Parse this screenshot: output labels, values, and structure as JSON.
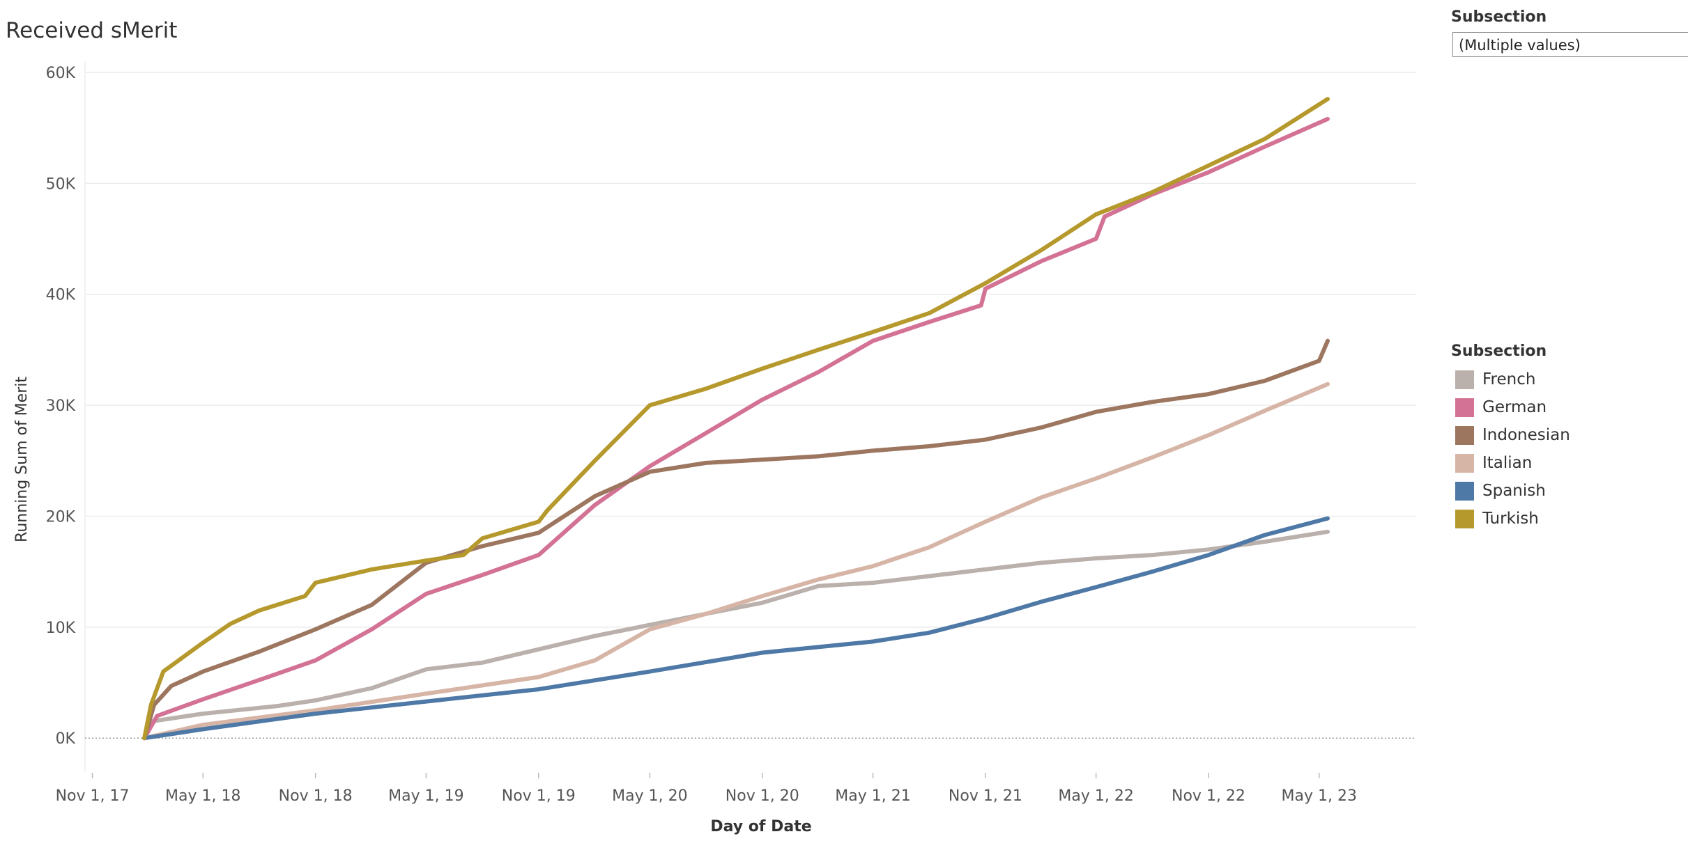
{
  "header": {
    "title": "Received sMerit"
  },
  "filter": {
    "title": "Subsection",
    "value": "(Multiple values)"
  },
  "legend": {
    "title": "Subsection",
    "items": [
      {
        "label": "French",
        "color": "#BAB0AC"
      },
      {
        "label": "German",
        "color": "#D37295"
      },
      {
        "label": "Indonesian",
        "color": "#9D7660"
      },
      {
        "label": "Italian",
        "color": "#D7B5A6"
      },
      {
        "label": "Spanish",
        "color": "#4E79A7"
      },
      {
        "label": "Turkish",
        "color": "#B6992D"
      }
    ]
  },
  "chart_data": {
    "type": "line",
    "xlabel": "Day of Date",
    "ylabel": "Running Sum of Merit",
    "x_ticks": [
      "Nov 1, 17",
      "May 1, 18",
      "Nov 1, 18",
      "May 1, 19",
      "Nov 1, 19",
      "May 1, 20",
      "Nov 1, 20",
      "May 1, 21",
      "Nov 1, 21",
      "May 1, 22",
      "Nov 1, 22",
      "May 1, 23"
    ],
    "y_ticks": [
      "0K",
      "10K",
      "20K",
      "30K",
      "40K",
      "50K",
      "60K"
    ],
    "ylim": [
      -3000,
      61000
    ],
    "xlim": [
      "2017-10-20",
      "2023-11-10"
    ],
    "grid": "horizontal",
    "legend_position": "right",
    "series": [
      {
        "name": "French",
        "color": "#BAB0AC",
        "points": [
          [
            "2018-01-25",
            0
          ],
          [
            "2018-02-05",
            1500
          ],
          [
            "2018-05-01",
            2200
          ],
          [
            "2018-09-01",
            2900
          ],
          [
            "2018-11-01",
            3400
          ],
          [
            "2019-02-01",
            4500
          ],
          [
            "2019-05-01",
            6200
          ],
          [
            "2019-08-01",
            6800
          ],
          [
            "2019-11-01",
            8000
          ],
          [
            "2020-02-01",
            9200
          ],
          [
            "2020-05-01",
            10200
          ],
          [
            "2020-08-01",
            11200
          ],
          [
            "2020-11-01",
            12200
          ],
          [
            "2021-02-01",
            13700
          ],
          [
            "2021-05-01",
            14000
          ],
          [
            "2021-08-01",
            14600
          ],
          [
            "2021-11-01",
            15200
          ],
          [
            "2022-02-01",
            15800
          ],
          [
            "2022-05-01",
            16200
          ],
          [
            "2022-08-01",
            16500
          ],
          [
            "2022-11-01",
            17000
          ],
          [
            "2023-02-01",
            17700
          ],
          [
            "2023-05-15",
            18600
          ]
        ]
      },
      {
        "name": "German",
        "color": "#D37295",
        "points": [
          [
            "2018-01-25",
            0
          ],
          [
            "2018-02-15",
            2000
          ],
          [
            "2018-05-01",
            3500
          ],
          [
            "2018-08-15",
            5500
          ],
          [
            "2018-11-01",
            7000
          ],
          [
            "2019-02-01",
            9800
          ],
          [
            "2019-05-01",
            13000
          ],
          [
            "2019-08-01",
            14700
          ],
          [
            "2019-11-01",
            16500
          ],
          [
            "2020-02-01",
            21000
          ],
          [
            "2020-05-01",
            24500
          ],
          [
            "2020-08-01",
            27500
          ],
          [
            "2020-11-01",
            30500
          ],
          [
            "2021-02-01",
            33000
          ],
          [
            "2021-05-01",
            35800
          ],
          [
            "2021-08-01",
            37500
          ],
          [
            "2021-10-25",
            39000
          ],
          [
            "2021-11-01",
            40500
          ],
          [
            "2022-02-01",
            43000
          ],
          [
            "2022-05-01",
            45000
          ],
          [
            "2022-05-15",
            47000
          ],
          [
            "2022-08-01",
            49000
          ],
          [
            "2022-11-01",
            51000
          ],
          [
            "2023-02-01",
            53300
          ],
          [
            "2023-05-15",
            55800
          ]
        ]
      },
      {
        "name": "Indonesian",
        "color": "#9D7660",
        "points": [
          [
            "2018-01-25",
            0
          ],
          [
            "2018-02-10",
            3000
          ],
          [
            "2018-03-10",
            4700
          ],
          [
            "2018-05-01",
            6000
          ],
          [
            "2018-08-01",
            7800
          ],
          [
            "2018-11-01",
            9800
          ],
          [
            "2019-02-01",
            12000
          ],
          [
            "2019-05-01",
            15800
          ],
          [
            "2019-08-01",
            17300
          ],
          [
            "2019-11-01",
            18500
          ],
          [
            "2020-02-01",
            21800
          ],
          [
            "2020-05-01",
            24000
          ],
          [
            "2020-08-01",
            24800
          ],
          [
            "2020-11-01",
            25100
          ],
          [
            "2021-02-01",
            25400
          ],
          [
            "2021-05-01",
            25900
          ],
          [
            "2021-08-01",
            26300
          ],
          [
            "2021-11-01",
            26900
          ],
          [
            "2022-02-01",
            28000
          ],
          [
            "2022-05-01",
            29400
          ],
          [
            "2022-08-01",
            30300
          ],
          [
            "2022-11-01",
            31000
          ],
          [
            "2023-02-01",
            32200
          ],
          [
            "2023-05-01",
            34000
          ],
          [
            "2023-05-15",
            35800
          ]
        ]
      },
      {
        "name": "Italian",
        "color": "#D7B5A6",
        "points": [
          [
            "2018-01-25",
            0
          ],
          [
            "2018-05-01",
            1200
          ],
          [
            "2018-11-01",
            2500
          ],
          [
            "2019-05-01",
            4000
          ],
          [
            "2019-11-01",
            5500
          ],
          [
            "2020-02-01",
            7000
          ],
          [
            "2020-05-01",
            9800
          ],
          [
            "2020-08-01",
            11200
          ],
          [
            "2020-11-01",
            12800
          ],
          [
            "2021-02-01",
            14300
          ],
          [
            "2021-05-01",
            15500
          ],
          [
            "2021-08-01",
            17200
          ],
          [
            "2021-11-01",
            19500
          ],
          [
            "2022-02-01",
            21700
          ],
          [
            "2022-05-01",
            23400
          ],
          [
            "2022-08-01",
            25300
          ],
          [
            "2022-11-01",
            27300
          ],
          [
            "2023-02-01",
            29500
          ],
          [
            "2023-05-15",
            31900
          ]
        ]
      },
      {
        "name": "Spanish",
        "color": "#4E79A7",
        "points": [
          [
            "2018-01-25",
            0
          ],
          [
            "2018-05-01",
            800
          ],
          [
            "2018-11-01",
            2200
          ],
          [
            "2019-05-01",
            3300
          ],
          [
            "2019-11-01",
            4400
          ],
          [
            "2020-05-01",
            6000
          ],
          [
            "2020-11-01",
            7700
          ],
          [
            "2021-05-01",
            8700
          ],
          [
            "2021-08-01",
            9500
          ],
          [
            "2021-11-01",
            10800
          ],
          [
            "2022-02-01",
            12300
          ],
          [
            "2022-05-01",
            13600
          ],
          [
            "2022-08-01",
            15000
          ],
          [
            "2022-11-01",
            16500
          ],
          [
            "2023-02-01",
            18300
          ],
          [
            "2023-05-15",
            19800
          ]
        ]
      },
      {
        "name": "Turkish",
        "color": "#B6992D",
        "points": [
          [
            "2018-01-25",
            0
          ],
          [
            "2018-02-05",
            3000
          ],
          [
            "2018-02-25",
            6000
          ],
          [
            "2018-05-01",
            8600
          ],
          [
            "2018-06-15",
            10300
          ],
          [
            "2018-08-01",
            11500
          ],
          [
            "2018-10-15",
            12800
          ],
          [
            "2018-11-01",
            14000
          ],
          [
            "2019-02-01",
            15200
          ],
          [
            "2019-05-01",
            16000
          ],
          [
            "2019-07-01",
            16500
          ],
          [
            "2019-08-01",
            18000
          ],
          [
            "2019-11-01",
            19500
          ],
          [
            "2019-11-15",
            20500
          ],
          [
            "2020-02-01",
            25000
          ],
          [
            "2020-05-01",
            30000
          ],
          [
            "2020-08-01",
            31500
          ],
          [
            "2020-11-01",
            33300
          ],
          [
            "2021-02-01",
            35000
          ],
          [
            "2021-05-01",
            36600
          ],
          [
            "2021-08-01",
            38300
          ],
          [
            "2021-11-01",
            41000
          ],
          [
            "2022-02-01",
            44000
          ],
          [
            "2022-05-01",
            47200
          ],
          [
            "2022-08-01",
            49200
          ],
          [
            "2022-11-01",
            51600
          ],
          [
            "2023-02-01",
            54000
          ],
          [
            "2023-05-15",
            57600
          ]
        ]
      }
    ]
  }
}
